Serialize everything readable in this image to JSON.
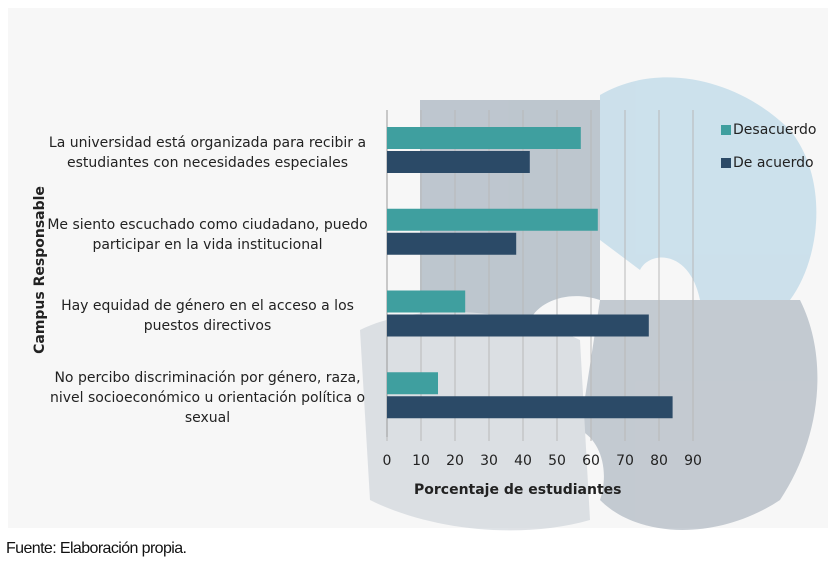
{
  "chart_data": {
    "type": "bar",
    "orientation": "horizontal",
    "categories": [
      "La universidad está organizada para recibir a estudiantes con necesidades especiales",
      "Me siento escuchado como ciudadano, puedo participar en la vida institucional",
      "Hay equidad de género en el acceso a los puestos directivos",
      "No percibo discriminación por género, raza, nivel socioeconómico u orientación política o sexual"
    ],
    "series": [
      {
        "name": "Desacuerdo",
        "color": "#3f9f9f",
        "values": [
          57,
          62,
          23,
          15
        ]
      },
      {
        "name": "De acuerdo",
        "color": "#2b4a67",
        "values": [
          42,
          38,
          77,
          84
        ]
      }
    ],
    "xlim": [
      0,
      90
    ],
    "xticks": [
      0,
      10,
      20,
      30,
      40,
      50,
      60,
      70,
      80,
      90
    ],
    "xlabel": "Porcentaje de estudiantes",
    "ylabel": "Campus Responsable",
    "grid": true,
    "legend": "right",
    "source": "Fuente: Elaboración propia."
  }
}
